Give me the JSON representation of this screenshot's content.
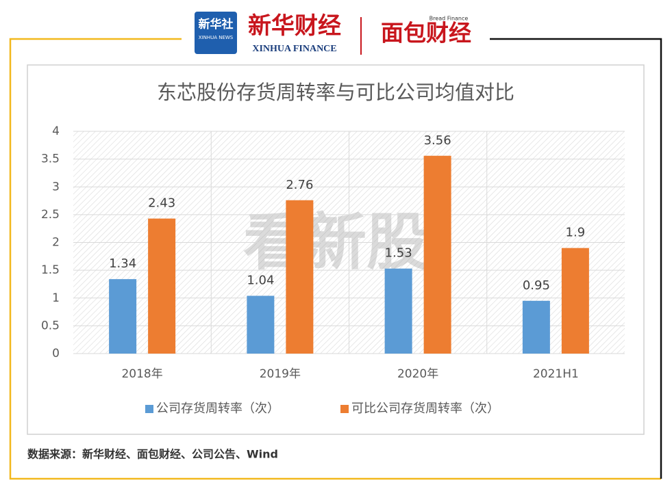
{
  "header": {
    "logo1_cn": "新华社",
    "logo1_en": "XINHUA NEWS",
    "logo2_cn": "新华财经",
    "logo2_en": "XINHUA FINANCE",
    "logo3_cn": "面包财经",
    "logo3_en": "Bread Finance"
  },
  "chart_data": {
    "type": "bar",
    "title": "东芯股份存货周转率与可比公司均值对比",
    "watermark": "看新股",
    "categories": [
      "2018年",
      "2019年",
      "2020年",
      "2021H1"
    ],
    "series": [
      {
        "name": "公司存货周转率（次）",
        "color": "#5b9bd5",
        "values": [
          1.34,
          1.04,
          1.53,
          0.95
        ]
      },
      {
        "name": "可比公司存货周转率（次）",
        "color": "#ed7d31",
        "values": [
          2.43,
          2.76,
          3.56,
          1.9
        ]
      }
    ],
    "ylim": [
      0,
      4
    ],
    "yticks": [
      0,
      0.5,
      1,
      1.5,
      2,
      2.5,
      3,
      3.5,
      4
    ],
    "grid": true,
    "legend": "bottom"
  },
  "footer": {
    "source": "数据来源：新华财经、面包财经、公司公告、Wind"
  }
}
